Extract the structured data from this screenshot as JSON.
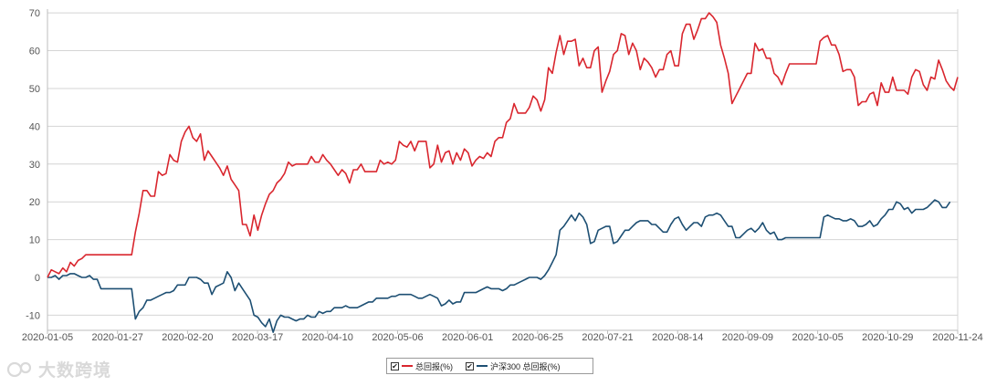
{
  "chart_data": {
    "type": "line",
    "x_tick_labels": [
      "2020-01-05",
      "2020-01-27",
      "2020-02-20",
      "2020-03-17",
      "2020-04-10",
      "2020-05-06",
      "2020-06-01",
      "2020-06-25",
      "2020-07-21",
      "2020-08-14",
      "2020-09-09",
      "2020-10-05",
      "2020-10-29",
      "2020-11-24"
    ],
    "y_tick_labels": [
      "-10",
      "0",
      "10",
      "20",
      "30",
      "40",
      "50",
      "60",
      "70"
    ],
    "ylim": [
      -14,
      71
    ],
    "grid": "horizontal",
    "legend_position": "bottom-center",
    "series": [
      {
        "name": "总回报(%)",
        "color": "#d9262e",
        "values": [
          0,
          2,
          1.5,
          1,
          2.5,
          1.5,
          4,
          3,
          4.5,
          5,
          6,
          6,
          6,
          6,
          6,
          6,
          6,
          6,
          6,
          6,
          6,
          6,
          6,
          12,
          17,
          23,
          23,
          21.5,
          21.5,
          28,
          27,
          27.5,
          32.5,
          31,
          30.5,
          36,
          38.5,
          40,
          37,
          36,
          38,
          31,
          33.5,
          32,
          30.5,
          29,
          27,
          29.5,
          26,
          24.5,
          23,
          14,
          14,
          11,
          16.5,
          12.5,
          16.5,
          19.5,
          22,
          23,
          25,
          26,
          27.5,
          30.5,
          29.5,
          30,
          30,
          30,
          30,
          32,
          30.5,
          30.5,
          32.5,
          31,
          30,
          28.5,
          27,
          28.5,
          27.5,
          25,
          28.5,
          28.5,
          30,
          28,
          28,
          28,
          28,
          31,
          30,
          30.5,
          30,
          31,
          36,
          35,
          34.5,
          36,
          33.5,
          36,
          36,
          36,
          29,
          30,
          35,
          30.5,
          33,
          33.5,
          30,
          33,
          31,
          34,
          33,
          29.5,
          31,
          32,
          31.5,
          33,
          32,
          36,
          37,
          37,
          41,
          42,
          46,
          43.5,
          43.5,
          43.5,
          45,
          48,
          47,
          44,
          47,
          55.5,
          54,
          59.5,
          64,
          59,
          62.5,
          62.5,
          63,
          56,
          58,
          55.5,
          55.5,
          60,
          61,
          49,
          52,
          54.5,
          59,
          60,
          64.5,
          64,
          59,
          62,
          60,
          55,
          58,
          57,
          55.5,
          53,
          55,
          55,
          59,
          60,
          56,
          56,
          64.5,
          67,
          67,
          63,
          65.5,
          68.5,
          68.5,
          70,
          69,
          67.5,
          61.5,
          58,
          54,
          46,
          48,
          50,
          52,
          54,
          54,
          62,
          60,
          60.5,
          58,
          58,
          54,
          53,
          51,
          54,
          56.5,
          56.5,
          56.5,
          56.5,
          56.5,
          56.5,
          56.5,
          56.5,
          62.5,
          63.5,
          64,
          61.5,
          61.5,
          59,
          54.5,
          55,
          55,
          53,
          45.5,
          46.5,
          46.5,
          48.5,
          49,
          45.5,
          51.5,
          49,
          49,
          53,
          49.5,
          49.5,
          49.5,
          48.5,
          53,
          55,
          54.5,
          51,
          49.5,
          53,
          52.5,
          57.5,
          55,
          52,
          50.5,
          49.5,
          53
        ]
      },
      {
        "name": "沪深300 总回报(%)",
        "color": "#1d4f73",
        "values": [
          0,
          0,
          0.5,
          -0.5,
          0.5,
          0.5,
          1,
          1,
          0.5,
          0,
          0,
          0.5,
          -0.5,
          -0.5,
          -3,
          -3,
          -3,
          -3,
          -3,
          -3,
          -3,
          -3,
          -3,
          -11,
          -9,
          -8,
          -6,
          -6,
          -5.5,
          -5,
          -4.5,
          -4,
          -4,
          -3.5,
          -2,
          -2,
          -2,
          0,
          0,
          0,
          -0.5,
          -1.5,
          -1.5,
          -4.5,
          -2.5,
          -2,
          -1.5,
          1.5,
          0,
          -3.5,
          -1.5,
          -3,
          -4.5,
          -6,
          -10,
          -10.5,
          -12,
          -13,
          -11,
          -14.5,
          -11.5,
          -10,
          -10.5,
          -10.5,
          -11,
          -11.5,
          -11,
          -11,
          -10,
          -10.5,
          -10.5,
          -9,
          -9.5,
          -9,
          -9,
          -8,
          -8,
          -8,
          -7.5,
          -8,
          -8,
          -8,
          -7.5,
          -7,
          -6.5,
          -6.5,
          -5.5,
          -5.5,
          -5.5,
          -5.5,
          -5,
          -5,
          -4.5,
          -4.5,
          -4.5,
          -4.5,
          -5,
          -5.5,
          -5.5,
          -5,
          -4.5,
          -5,
          -5.5,
          -7.5,
          -7,
          -6,
          -7,
          -6.5,
          -6.5,
          -4,
          -4,
          -4,
          -4,
          -3.5,
          -3,
          -2.5,
          -3,
          -3,
          -3,
          -3.5,
          -3,
          -2,
          -2,
          -1.5,
          -1,
          -0.5,
          0,
          0,
          0,
          -0.5,
          0.5,
          2,
          4,
          6,
          12.5,
          13.5,
          15,
          16.5,
          15,
          17,
          16,
          14,
          9,
          9.5,
          12.5,
          13,
          13.5,
          13.5,
          9,
          9.5,
          11,
          12.5,
          12.5,
          13.5,
          14.5,
          15,
          15,
          15,
          14,
          14,
          13,
          12,
          12,
          14,
          15.5,
          16,
          14,
          12.5,
          13.5,
          14.5,
          14.5,
          13.5,
          16,
          16.5,
          16.5,
          17,
          16.5,
          15,
          13.5,
          13.5,
          10.5,
          10.5,
          11.5,
          12.5,
          13,
          12,
          13,
          14.5,
          12.5,
          11.5,
          12,
          10,
          10,
          10.5,
          10.5,
          10.5,
          10.5,
          10.5,
          10.5,
          10.5,
          10.5,
          10.5,
          10.5,
          16,
          16.5,
          16,
          15.5,
          15.5,
          15,
          15,
          15.5,
          15,
          13.5,
          13.5,
          14,
          15,
          13.5,
          14,
          15.5,
          16.5,
          18,
          18,
          20,
          19.5,
          18,
          18.5,
          17,
          18,
          18,
          18,
          18.5,
          19.5,
          20.5,
          20,
          18.5,
          18.5,
          20
        ]
      }
    ]
  },
  "legend": {
    "items": [
      {
        "label": "总回报(%)",
        "color": "#d9262e"
      },
      {
        "label": "沪深300 总回报(%)",
        "color": "#1d4f73"
      }
    ],
    "check_glyph": "✔"
  },
  "watermark": {
    "text": "大数跨境",
    "icon": "watermark-logo-icon"
  }
}
